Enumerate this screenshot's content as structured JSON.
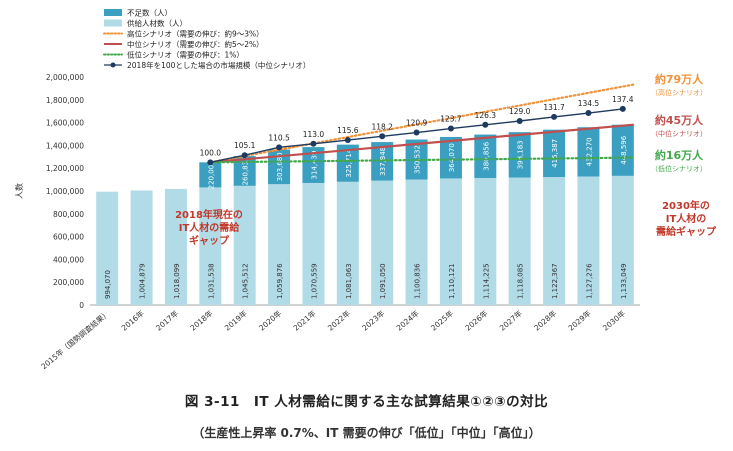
{
  "chart_data": {
    "type": "bar",
    "stacked": true,
    "title": "",
    "ylabel": "人数",
    "ylim": [
      0,
      2000000
    ],
    "yticks": [
      0,
      200000,
      400000,
      600000,
      800000,
      1000000,
      1200000,
      1400000,
      1600000,
      1800000,
      2000000
    ],
    "ytick_labels": [
      "0",
      "200,000",
      "400,000",
      "600,000",
      "800,000",
      "1,000,000",
      "1,200,000",
      "1,400,000",
      "1,600,000",
      "1,800,000",
      "2,000,000"
    ],
    "categories": [
      "2015年（国勢調査結果）",
      "2016年",
      "2017年",
      "2018年",
      "2019年",
      "2020年",
      "2021年",
      "2022年",
      "2023年",
      "2024年",
      "2025年",
      "2026年",
      "2027年",
      "2028年",
      "2029年",
      "2030年"
    ],
    "series": [
      {
        "name": "供給人材数（人）",
        "color": "#b2dbe8",
        "values": [
          994070,
          1004879,
          1018099,
          1031538,
          1045512,
          1059876,
          1070559,
          1081063,
          1091050,
          1100836,
          1110121,
          1114225,
          1118085,
          1122367,
          1127276,
          1133049
        ],
        "labels": [
          "994,070",
          "1,004,879",
          "1,018,099",
          "1,031,538",
          "1,045,512",
          "1,059,876",
          "1,070,559",
          "1,081,063",
          "1,091,050",
          "1,100,836",
          "1,110,121",
          "1,114,225",
          "1,118,085",
          "1,122,367",
          "1,127,276",
          "1,133,049"
        ]
      },
      {
        "name": "不足数（人）",
        "color": "#3a9fc0",
        "values": [
          null,
          null,
          null,
          220000,
          260835,
          303680,
          314439,
          325714,
          337848,
          350532,
          364070,
          380856,
          398183,
          415387,
          432270,
          448596
        ],
        "labels": [
          null,
          null,
          null,
          "220,000",
          "260,835",
          "303,680",
          "314,439",
          "325,714",
          "337,848",
          "350,532",
          "364,070",
          "380,856",
          "398,183",
          "415,387",
          "432,270",
          "448,596"
        ]
      }
    ],
    "lines": [
      {
        "name": "高位シナリオ（需要の伸び：約9～3%）",
        "color": "#f0923a",
        "style": "dotted",
        "start_index": 3,
        "values": [
          1251538,
          1934000
        ]
      },
      {
        "name": "中位シナリオ（需要の伸び：約5～2%）",
        "color": "#c0504d",
        "style": "solid",
        "start_index": 3,
        "values": [
          1251538,
          1581645
        ]
      },
      {
        "name": "低位シナリオ（需要の伸び：1%）",
        "color": "#41a84a",
        "style": "dotted",
        "start_index": 3,
        "values": [
          1251538,
          1293000
        ]
      },
      {
        "name": "2018年を100とした場合の市場規模（中位シナリオ）",
        "color": "#1f3a5f",
        "style": "solid-markers",
        "start_index": 3,
        "values": [
          1251538,
          1314000,
          1383000,
          1414000,
          1447000,
          1480000,
          1513000,
          1548000,
          1581000,
          1614000,
          1650000,
          1684000,
          1720000
        ],
        "labels": [
          "100.0",
          "105.1",
          "110.5",
          "113.0",
          "115.6",
          "118.2",
          "120.9",
          "123.7",
          "126.3",
          "129.0",
          "131.7",
          "134.5",
          "137.4"
        ]
      }
    ],
    "annotations": {
      "gap2018": [
        "2018年現在の",
        "IT人材の需給",
        "ギャップ"
      ],
      "gap2030": [
        "2030年の",
        "IT人材の",
        "需給ギャップ"
      ],
      "high_value": "約79万人",
      "high_sub": "（高位シナリオ）",
      "mid_value": "約45万人",
      "mid_sub": "（中位シナリオ）",
      "low_value": "約16万人",
      "low_sub": "（低位シナリオ）"
    },
    "legend_placement": "top-left",
    "grid": false
  },
  "caption": {
    "line1": "図 3-11　IT 人材需給に関する主な試算結果①②③の対比",
    "line2": "（生産性上昇率 0.7%、IT 需要の伸び「低位」「中位」「高位」）"
  },
  "colors": {
    "high": "#f0923a",
    "mid": "#c0504d",
    "low": "#41a84a",
    "market": "#1f3a5f",
    "note": "#c0392b"
  }
}
